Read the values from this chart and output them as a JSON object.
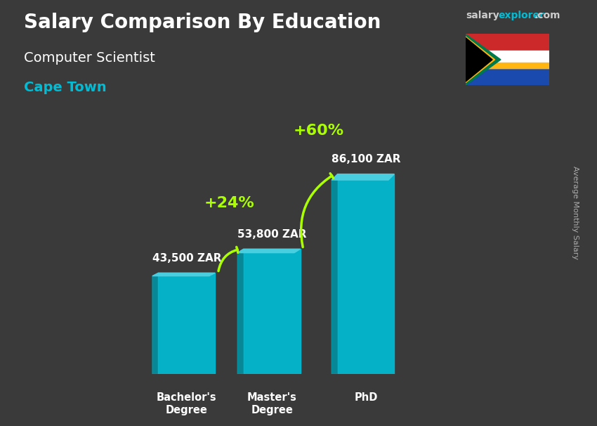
{
  "title": "Salary Comparison By Education",
  "subtitle": "Computer Scientist",
  "location": "Cape Town",
  "ylabel": "Average Monthly Salary",
  "categories": [
    "Bachelor's\nDegree",
    "Master's\nDegree",
    "PhD"
  ],
  "values": [
    43500,
    53800,
    86100
  ],
  "labels": [
    "43,500 ZAR",
    "53,800 ZAR",
    "86,100 ZAR"
  ],
  "bar_color": "#00bcd4",
  "bar_color_top": "#4dd0e1",
  "bar_color_side": "#0097a7",
  "pct_labels": [
    "+24%",
    "+60%"
  ],
  "pct_color": "#aaff00",
  "background_color": "#3a3a3a",
  "title_color": "#ffffff",
  "subtitle_color": "#ffffff",
  "location_color": "#00bcd4",
  "label_color": "#ffffff",
  "arrow_color": "#aaff00",
  "site_text": "salaryexplorer.com",
  "site_color_salary": "#cccccc",
  "site_color_explorer": "#00bcd4"
}
